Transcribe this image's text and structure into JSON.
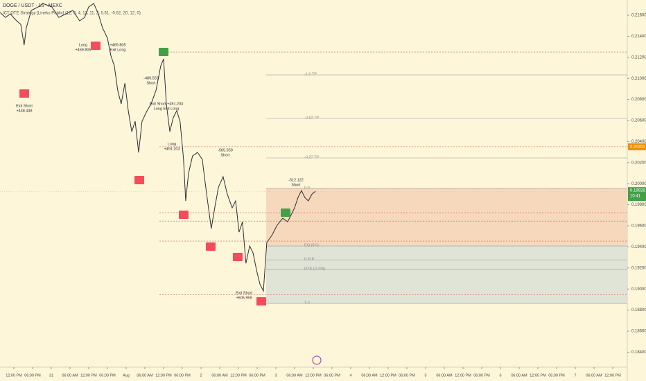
{
  "chart_data": {
    "type": "line",
    "title": "DOGE / USDT · 15 · MEXC",
    "subtitle": "ICT OTE Strategy [Lineko Public] (12, 9, 4, 13, 11, 2, 0.61, -0.62, 20, 12, 0)",
    "x": [
      -4.4,
      -2.7,
      -1.1,
      0.4,
      2.2,
      3.3,
      4,
      5.6,
      7.8,
      9.3,
      12.2,
      14.4,
      16.7,
      18.9,
      21.1,
      22.7,
      24,
      25.6,
      27.1,
      28.4,
      30,
      31.1,
      32.2,
      33.3,
      34.4,
      35.6,
      36.7,
      37.8,
      38.9,
      40,
      41.1,
      42.7,
      44,
      45.6,
      47.1,
      48,
      48.9,
      50,
      51.1,
      52.2,
      53.3,
      54.4,
      55.1,
      56,
      57.3,
      58.9,
      60.4,
      61.8,
      63.3,
      64.4,
      65.6,
      67.1,
      68.4,
      70,
      71.1,
      72.2,
      73.3,
      74.4,
      75.6,
      76.7,
      77.8,
      78.9,
      80,
      81.1,
      82.7,
      84.4,
      86.2,
      87.8,
      88.9,
      90,
      91.1,
      92.2,
      93.3,
      94.4,
      95.6,
      96.7
    ],
    "series": [
      {
        "name": "DOGE / USDT",
        "color": "#2a2e39",
        "values": [
          0.21626,
          0.2158,
          0.21613,
          0.21561,
          0.21514,
          0.21317,
          0.21482,
          0.21646,
          0.21679,
          0.21712,
          0.21679,
          0.2158,
          0.21613,
          0.21646,
          0.21547,
          0.2158,
          0.21679,
          0.21712,
          0.21613,
          0.21482,
          0.21383,
          0.21218,
          0.2112,
          0.20889,
          0.20758,
          0.20955,
          0.20692,
          0.20495,
          0.20593,
          0.20297,
          0.20593,
          0.20692,
          0.20758,
          0.20889,
          0.2112,
          0.21185,
          0.20758,
          0.20495,
          0.20626,
          0.20692,
          0.20593,
          0.20231,
          0.19837,
          0.201,
          0.20264,
          0.20297,
          0.20231,
          0.19902,
          0.19573,
          0.19771,
          0.19968,
          0.20067,
          0.19902,
          0.19771,
          0.19837,
          0.1954,
          0.19639,
          0.19244,
          0.19409,
          0.19343,
          0.19179,
          0.19047,
          0.18981,
          0.19442,
          0.19508,
          0.19606,
          0.19672,
          0.19639,
          0.19705,
          0.19771,
          0.19869,
          0.19935,
          0.19869,
          0.19837,
          0.19902,
          0.19928
        ]
      }
    ],
    "xlim": [
      -4.44,
      196.67
    ],
    "ylim": [
      0.18258,
      0.21745
    ],
    "xticks": [
      {
        "value": 0,
        "label": "12:00 PM"
      },
      {
        "value": 6,
        "label": "06:00 PM"
      },
      {
        "value": 12,
        "label": "31"
      },
      {
        "value": 18,
        "label": "06:00 AM"
      },
      {
        "value": 24,
        "label": "12:00 PM"
      },
      {
        "value": 30,
        "label": "06:00 PM"
      },
      {
        "value": 36,
        "label": "Aug"
      },
      {
        "value": 42,
        "label": "06:00 AM"
      },
      {
        "value": 48,
        "label": "12:00 PM"
      },
      {
        "value": 54,
        "label": "06:00 PM"
      },
      {
        "value": 60,
        "label": "2"
      },
      {
        "value": 66,
        "label": "06:00 AM"
      },
      {
        "value": 72,
        "label": "12:00 PM"
      },
      {
        "value": 78,
        "label": "06:00 PM"
      },
      {
        "value": 84,
        "label": "3"
      },
      {
        "value": 90,
        "label": "06:00 AM"
      },
      {
        "value": 96,
        "label": "12:00 PM"
      },
      {
        "value": 102,
        "label": "06:00 PM"
      },
      {
        "value": 108,
        "label": "4"
      },
      {
        "value": 114,
        "label": "06:00 AM"
      },
      {
        "value": 120,
        "label": "12:00 PM"
      },
      {
        "value": 126,
        "label": "06:00 PM"
      },
      {
        "value": 132,
        "label": "5"
      },
      {
        "value": 138,
        "label": "06:00 AM"
      },
      {
        "value": 144,
        "label": "12:00 PM"
      },
      {
        "value": 150,
        "label": "06:00 PM"
      },
      {
        "value": 156,
        "label": "6"
      },
      {
        "value": 162,
        "label": "06:00 AM"
      },
      {
        "value": 168,
        "label": "12:00 PM"
      },
      {
        "value": 174,
        "label": "06:00 PM"
      },
      {
        "value": 180,
        "label": "7"
      },
      {
        "value": 186,
        "label": "06:00 AM"
      },
      {
        "value": 192,
        "label": "12:00 PM"
      }
    ],
    "yticks": [
      {
        "value": 0.216,
        "label": "0.21600"
      },
      {
        "value": 0.214,
        "label": "0.21400"
      },
      {
        "value": 0.212,
        "label": "0.21200"
      },
      {
        "value": 0.21,
        "label": "0.21000"
      },
      {
        "value": 0.208,
        "label": "0.20800"
      },
      {
        "value": 0.206,
        "label": "0.20600"
      },
      {
        "value": 0.204,
        "label": "0.20400"
      },
      {
        "value": 0.202,
        "label": "0.20200"
      },
      {
        "value": 0.2,
        "label": "0.20000"
      },
      {
        "value": 0.198,
        "label": "0.19800"
      },
      {
        "value": 0.196,
        "label": "0.19600"
      },
      {
        "value": 0.194,
        "label": "0.19400"
      },
      {
        "value": 0.192,
        "label": "0.19200"
      },
      {
        "value": 0.19,
        "label": "0.19000"
      },
      {
        "value": 0.188,
        "label": "0.18800"
      },
      {
        "value": 0.186,
        "label": "0.18600"
      },
      {
        "value": 0.184,
        "label": "0.18400"
      }
    ],
    "current_price": {
      "value": 0.19928,
      "label": "0.19928",
      "countdown": "10:41",
      "color": "#43a047"
    },
    "marked_price": {
      "value": 0.20351,
      "label": "0.20351",
      "color": "#f08c00"
    },
    "levels": [
      {
        "label": "-1.0 TP",
        "value": 0.21034
      },
      {
        "label": "-0.62 TP",
        "value": 0.2062
      },
      {
        "label": "-0.27 TP",
        "value": 0.20245
      },
      {
        "label": "0.0",
        "value": 0.19955
      },
      {
        "label": "EQ (0.5)",
        "value": 0.19409
      },
      {
        "label": "0.618",
        "value": 0.19277
      },
      {
        "label": "OTE (0.705)",
        "value": 0.19185
      },
      {
        "label": "1.0",
        "value": 0.18863
      }
    ],
    "level_start": 80.9,
    "zones": [
      {
        "from": 0.19955,
        "to": 0.19409,
        "color": "#f5d3b6"
      },
      {
        "from": 0.19409,
        "to": 0.18863,
        "color": "#d9e1d6"
      }
    ],
    "dashed_levels": [
      0.21251,
      0.20351,
      0.19725,
      0.19645,
      0.19455,
      0.18945
    ],
    "annotations": [
      {
        "lines": [
          "Exit Short",
          "+448.448"
        ]
      },
      {
        "lines": [
          "Long",
          "+469.805"
        ]
      },
      {
        "lines": [
          "+469.805",
          "Exit Long"
        ]
      },
      {
        "lines": [
          "-489.559",
          "Short"
        ]
      },
      {
        "lines": [
          "Exit Short +491.203",
          "Long Exit Long"
        ]
      },
      {
        "lines": [
          "Long",
          "+491.203"
        ]
      },
      {
        "lines": [
          "-505.959",
          "Short"
        ]
      },
      {
        "lines": [
          "-512.122",
          "Short"
        ]
      },
      {
        "lines": [
          "Exit Short",
          "+505.959"
        ]
      }
    ]
  }
}
